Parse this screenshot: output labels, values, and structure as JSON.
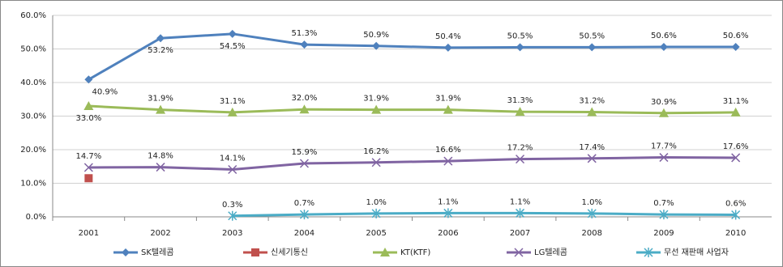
{
  "chart_data": {
    "type": "line",
    "categories": [
      "2001",
      "2002",
      "2003",
      "2004",
      "2005",
      "2006",
      "2007",
      "2008",
      "2009",
      "2010"
    ],
    "ylim": [
      0,
      60
    ],
    "yticks": [
      {
        "value": 0,
        "label": "0.0%"
      },
      {
        "value": 10,
        "label": "10.0%"
      },
      {
        "value": 20,
        "label": "20.0%"
      },
      {
        "value": 30,
        "label": "30.0%"
      },
      {
        "value": 40,
        "label": "40.0%"
      },
      {
        "value": 50,
        "label": "50.0%"
      },
      {
        "value": 60,
        "label": "60.0%"
      }
    ],
    "grid": true,
    "legend": "bottom",
    "series": [
      {
        "name": "SK텔레콤",
        "color": "#4f81bd",
        "marker": "diamond",
        "values": [
          40.9,
          53.2,
          54.5,
          51.3,
          50.9,
          50.4,
          50.5,
          50.5,
          50.6,
          50.6
        ],
        "value_labels": [
          "40.9%",
          "53.2%",
          "54.5%",
          "51.3%",
          "50.9%",
          "50.4%",
          "50.5%",
          "50.5%",
          "50.6%",
          "50.6%"
        ]
      },
      {
        "name": "신세기통신",
        "color": "#c0504d",
        "marker": "square",
        "values": [
          11.5,
          null,
          null,
          null,
          null,
          null,
          null,
          null,
          null,
          null
        ]
      },
      {
        "name": "KT(KTF)",
        "color": "#9bbb59",
        "marker": "triangle",
        "values": [
          33.0,
          31.9,
          31.1,
          32.0,
          31.9,
          31.9,
          31.3,
          31.2,
          30.9,
          31.1
        ],
        "value_labels": [
          "33.0%",
          "31.9%",
          "31.1%",
          "32.0%",
          "31.9%",
          "31.9%",
          "31.3%",
          "31.2%",
          "30.9%",
          "31.1%"
        ]
      },
      {
        "name": "LG텔레콤",
        "color": "#8064a2",
        "marker": "x",
        "values": [
          14.7,
          14.8,
          14.1,
          15.9,
          16.2,
          16.6,
          17.2,
          17.4,
          17.7,
          17.6
        ],
        "value_labels": [
          "14.7%",
          "14.8%",
          "14.1%",
          "15.9%",
          "16.2%",
          "16.6%",
          "17.2%",
          "17.4%",
          "17.7%",
          "17.6%"
        ]
      },
      {
        "name": "무선 재판매 사업자",
        "color": "#4bacc6",
        "marker": "star",
        "values": [
          null,
          null,
          0.3,
          0.7,
          1.0,
          1.1,
          1.1,
          1.0,
          0.7,
          0.6
        ],
        "value_labels": [
          null,
          null,
          "0.3%",
          "0.7%",
          "1.0%",
          "1.1%",
          "1.1%",
          "1.0%",
          "0.7%",
          "0.6%"
        ]
      }
    ]
  }
}
